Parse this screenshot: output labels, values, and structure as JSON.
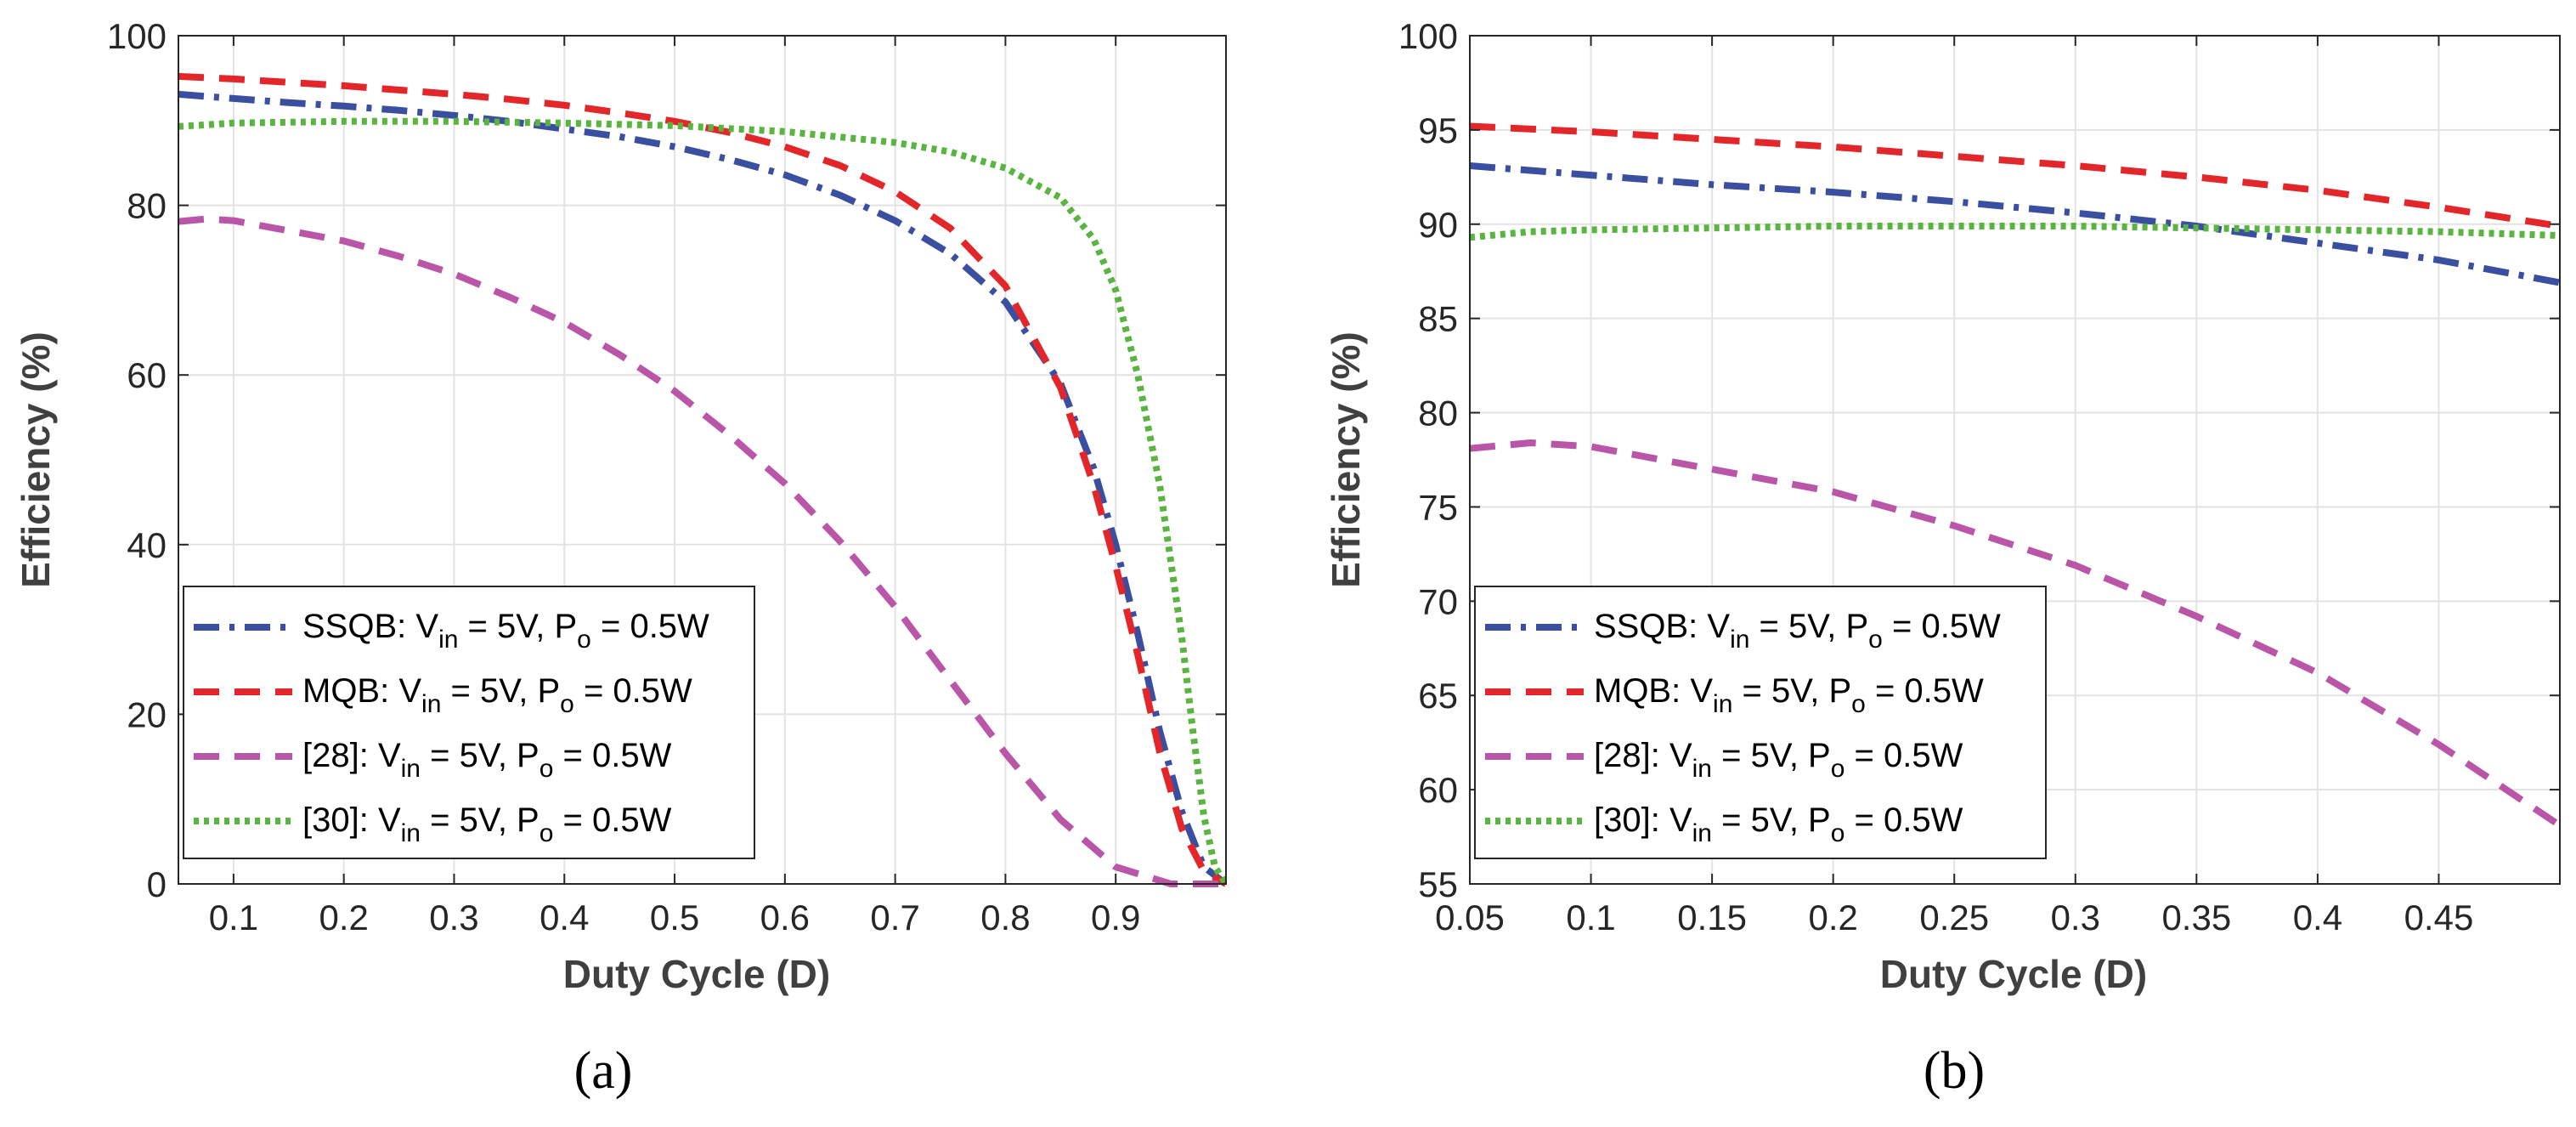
{
  "chart_data": [
    {
      "type": "line",
      "panel_label": "(a)",
      "xlabel": "Duty Cycle (D)",
      "ylabel": "Efficiency (%)",
      "xlim": [
        0.05,
        1.0
      ],
      "ylim": [
        0,
        100
      ],
      "xticks": [
        0.1,
        0.2,
        0.3,
        0.4,
        0.5,
        0.6,
        0.7,
        0.8,
        0.9
      ],
      "xtick_labels": [
        "0.1",
        "0.2",
        "0.3",
        "0.4",
        "0.5",
        "0.6",
        "0.7",
        "0.8",
        "0.9"
      ],
      "yticks": [
        0,
        20,
        40,
        60,
        80,
        100
      ],
      "ytick_labels": [
        "0",
        "20",
        "40",
        "60",
        "80",
        "100"
      ],
      "grid": true,
      "legend_position": "bottom-left",
      "series": [
        {
          "name": "SSQB",
          "legend_prefix": "SSQB: V",
          "legend_sub1": "in",
          "legend_mid": " = 5V, P",
          "legend_sub2": "o",
          "legend_suffix": " = 0.5W",
          "color": "#3a4fa0",
          "style": "dashdot",
          "x": [
            0.05,
            0.1,
            0.15,
            0.2,
            0.25,
            0.3,
            0.35,
            0.4,
            0.45,
            0.5,
            0.55,
            0.6,
            0.65,
            0.7,
            0.75,
            0.8,
            0.85,
            0.88,
            0.9,
            0.92,
            0.94,
            0.96,
            0.98,
            1.0
          ],
          "y": [
            93.1,
            92.6,
            92.1,
            91.7,
            91.2,
            90.6,
            89.9,
            89.0,
            88.1,
            86.9,
            85.4,
            83.6,
            81.2,
            78.2,
            74.3,
            68.6,
            59.0,
            49.0,
            40.0,
            29.5,
            18.0,
            8.5,
            2.0,
            0.0
          ]
        },
        {
          "name": "MQB",
          "legend_prefix": "MQB: V",
          "legend_sub1": "in",
          "legend_mid": " = 5V, P",
          "legend_sub2": "o",
          "legend_suffix": " = 0.5W",
          "color": "#e3262a",
          "style": "dashed",
          "x": [
            0.05,
            0.1,
            0.15,
            0.2,
            0.25,
            0.3,
            0.35,
            0.4,
            0.45,
            0.5,
            0.55,
            0.6,
            0.65,
            0.7,
            0.75,
            0.8,
            0.85,
            0.88,
            0.9,
            0.92,
            0.94,
            0.96,
            0.98,
            1.0
          ],
          "y": [
            95.2,
            94.9,
            94.5,
            94.1,
            93.6,
            93.1,
            92.5,
            91.8,
            90.9,
            89.9,
            88.6,
            86.9,
            84.7,
            81.6,
            77.3,
            70.5,
            58.5,
            47.0,
            37.5,
            27.0,
            15.5,
            6.5,
            1.5,
            0.0
          ]
        },
        {
          "name": "[28]",
          "legend_prefix": "[28]: V",
          "legend_sub1": "in",
          "legend_mid": " = 5V, P",
          "legend_sub2": "o",
          "legend_suffix": " = 0.5W",
          "color": "#b956a8",
          "style": "dashed",
          "x": [
            0.05,
            0.075,
            0.1,
            0.15,
            0.2,
            0.25,
            0.3,
            0.35,
            0.4,
            0.45,
            0.5,
            0.55,
            0.6,
            0.65,
            0.7,
            0.75,
            0.8,
            0.85,
            0.9,
            0.95,
            1.0
          ],
          "y": [
            78.1,
            78.4,
            78.2,
            77.0,
            75.8,
            74.0,
            71.9,
            69.2,
            66.2,
            62.4,
            58.1,
            52.9,
            47.2,
            40.4,
            32.7,
            24.0,
            15.4,
            7.6,
            2.0,
            0.0,
            0.0
          ]
        },
        {
          "name": "[30]",
          "legend_prefix": "[30]: V",
          "legend_sub1": "in",
          "legend_mid": " = 5V, P",
          "legend_sub2": "o",
          "legend_suffix": " = 0.5W",
          "color": "#5ab540",
          "style": "dotted",
          "x": [
            0.05,
            0.1,
            0.15,
            0.2,
            0.3,
            0.4,
            0.5,
            0.6,
            0.7,
            0.75,
            0.8,
            0.85,
            0.88,
            0.9,
            0.92,
            0.94,
            0.96,
            0.97,
            0.98,
            0.99,
            1.0
          ],
          "y": [
            89.3,
            89.7,
            89.8,
            89.9,
            89.9,
            89.7,
            89.4,
            88.7,
            87.4,
            86.3,
            84.4,
            80.9,
            76.0,
            70.0,
            60.0,
            47.0,
            29.0,
            18.0,
            8.0,
            2.0,
            0.0
          ]
        }
      ]
    },
    {
      "type": "line",
      "panel_label": "(b)",
      "xlabel": "Duty Cycle (D)",
      "ylabel": "Efficiency (%)",
      "xlim": [
        0.05,
        0.5
      ],
      "ylim": [
        55,
        100
      ],
      "xticks": [
        0.05,
        0.1,
        0.15,
        0.2,
        0.25,
        0.3,
        0.35,
        0.4,
        0.45
      ],
      "xtick_labels": [
        "0.05",
        "0.1",
        "0.15",
        "0.2",
        "0.25",
        "0.3",
        "0.35",
        "0.4",
        "0.45"
      ],
      "yticks": [
        55,
        60,
        65,
        70,
        75,
        80,
        85,
        90,
        95,
        100
      ],
      "ytick_labels": [
        "55",
        "60",
        "65",
        "70",
        "75",
        "80",
        "85",
        "90",
        "95",
        "100"
      ],
      "grid": true,
      "legend_position": "bottom-left",
      "series": [
        {
          "name": "SSQB",
          "legend_prefix": "SSQB: V",
          "legend_sub1": "in",
          "legend_mid": " = 5V, P",
          "legend_sub2": "o",
          "legend_suffix": " = 0.5W",
          "color": "#3a4fa0",
          "style": "dashdot",
          "x": [
            0.05,
            0.1,
            0.15,
            0.2,
            0.25,
            0.3,
            0.35,
            0.4,
            0.45,
            0.5
          ],
          "y": [
            93.1,
            92.6,
            92.1,
            91.7,
            91.2,
            90.6,
            89.9,
            89.0,
            88.1,
            86.9
          ]
        },
        {
          "name": "MQB",
          "legend_prefix": "MQB: V",
          "legend_sub1": "in",
          "legend_mid": " = 5V, P",
          "legend_sub2": "o",
          "legend_suffix": " = 0.5W",
          "color": "#e3262a",
          "style": "dashed",
          "x": [
            0.05,
            0.1,
            0.15,
            0.2,
            0.25,
            0.3,
            0.35,
            0.4,
            0.45,
            0.5
          ],
          "y": [
            95.2,
            94.9,
            94.5,
            94.1,
            93.6,
            93.1,
            92.5,
            91.8,
            90.9,
            89.9
          ]
        },
        {
          "name": "[28]",
          "legend_prefix": "[28]: V",
          "legend_sub1": "in",
          "legend_mid": " = 5V, P",
          "legend_sub2": "o",
          "legend_suffix": " = 0.5W",
          "color": "#b956a8",
          "style": "dashed",
          "x": [
            0.05,
            0.075,
            0.1,
            0.15,
            0.2,
            0.25,
            0.3,
            0.35,
            0.4,
            0.45,
            0.5
          ],
          "y": [
            78.1,
            78.4,
            78.2,
            77.0,
            75.8,
            74.0,
            71.9,
            69.2,
            66.2,
            62.4,
            58.1
          ]
        },
        {
          "name": "[30]",
          "legend_prefix": "[30]: V",
          "legend_sub1": "in",
          "legend_mid": " = 5V, P",
          "legend_sub2": "o",
          "legend_suffix": " = 0.5W",
          "color": "#5ab540",
          "style": "dotted",
          "x": [
            0.05,
            0.075,
            0.1,
            0.15,
            0.2,
            0.25,
            0.3,
            0.35,
            0.4,
            0.45,
            0.5
          ],
          "y": [
            89.3,
            89.6,
            89.7,
            89.8,
            89.9,
            89.9,
            89.9,
            89.8,
            89.7,
            89.6,
            89.4
          ]
        }
      ]
    }
  ]
}
